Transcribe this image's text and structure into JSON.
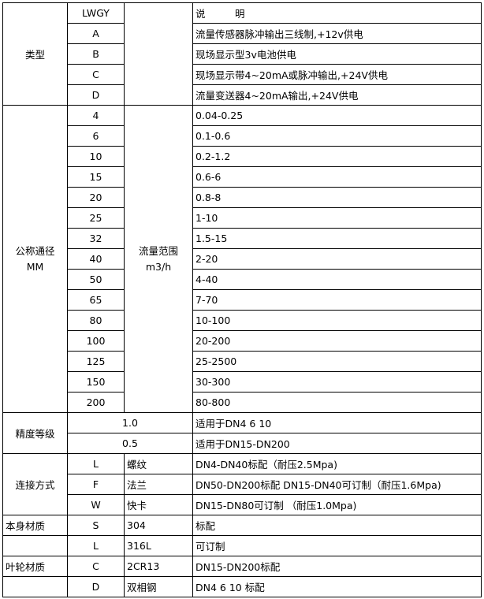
{
  "header": {
    "model": "LWGY",
    "desc": "说　　　明"
  },
  "type": {
    "label": "类型",
    "rows": [
      {
        "code": "A",
        "desc": "流量传感器脉冲输出三线制,+12v供电"
      },
      {
        "code": "B",
        "desc": "现场显示型3v电池供电"
      },
      {
        "code": "C",
        "desc": "现场显示带4~20mA或脉冲输出,+24V供电"
      },
      {
        "code": "D",
        "desc": "流量变送器4~20mA输出,+24V供电"
      }
    ]
  },
  "size": {
    "label1": "公称通径",
    "label2": "MM",
    "range_label1": "流量范围",
    "range_label2": "m3/h",
    "rows": [
      {
        "dn": "4",
        "range": "0.04-0.25"
      },
      {
        "dn": "6",
        "range": "0.1-0.6"
      },
      {
        "dn": "10",
        "range": "0.2-1.2"
      },
      {
        "dn": "15",
        "range": "0.6-6"
      },
      {
        "dn": "20",
        "range": "0.8-8"
      },
      {
        "dn": "25",
        "range": "1-10"
      },
      {
        "dn": "32",
        "range": "1.5-15"
      },
      {
        "dn": "40",
        "range": "2-20"
      },
      {
        "dn": "50",
        "range": "4-40"
      },
      {
        "dn": "65",
        "range": "7-70"
      },
      {
        "dn": "80",
        "range": "10-100"
      },
      {
        "dn": "100",
        "range": "20-200"
      },
      {
        "dn": "125",
        "range": "25-2500"
      },
      {
        "dn": "150",
        "range": "30-300"
      },
      {
        "dn": "200",
        "range": "80-800"
      }
    ]
  },
  "accuracy": {
    "label": "精度等级",
    "rows": [
      {
        "grade": "1.0",
        "desc": "适用于DN4  6  10"
      },
      {
        "grade": "0.5",
        "desc": "适用于DN15-DN200"
      }
    ]
  },
  "connection": {
    "label": "连接方式",
    "rows": [
      {
        "code": "L",
        "name": "螺纹",
        "desc": "DN4-DN40标配（耐压2.5Mpa)"
      },
      {
        "code": "F",
        "name": "法兰",
        "desc": "DN50-DN200标配 DN15-DN40可订制（耐压1.6Mpa)"
      },
      {
        "code": "W",
        "name": "快卡",
        "desc": "DN15-DN80可订制 （耐压1.0Mpa)"
      }
    ]
  },
  "body": {
    "label": "本身材质",
    "rows": [
      {
        "code": "S",
        "name": "304",
        "desc": "标配"
      },
      {
        "code": "L",
        "name": "316L",
        "desc": "可订制"
      }
    ]
  },
  "impeller": {
    "label": "叶轮材质",
    "rows": [
      {
        "code": "C",
        "name": "2CR13",
        "desc": "DN15-DN200标配"
      },
      {
        "code": "D",
        "name": "双相钢",
        "desc": "DN4 6 10 标配"
      }
    ]
  }
}
